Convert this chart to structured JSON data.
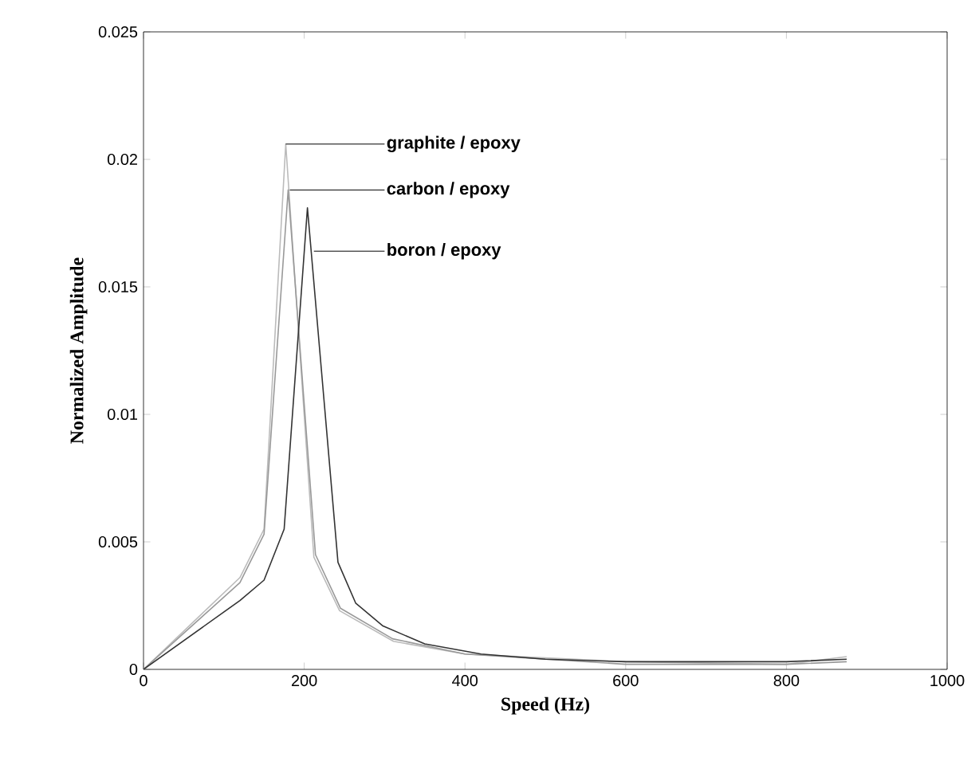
{
  "chart_data": {
    "type": "line",
    "xlabel": "Speed (Hz)",
    "ylabel": "Normalized Amplitude",
    "xlim": [
      0,
      1000
    ],
    "ylim": [
      0,
      0.025
    ],
    "xticks": [
      0,
      200,
      400,
      600,
      800,
      1000
    ],
    "yticks": [
      0,
      0.005,
      0.01,
      0.015,
      0.02,
      0.025
    ],
    "grid": false,
    "marker": "none",
    "line_style": "solid",
    "series": [
      {
        "color": "#bbbbbb",
        "x": [
          0,
          120,
          150,
          177,
          212,
          244,
          311,
          400,
          600,
          800,
          875
        ],
        "values": [
          0,
          0.0036,
          0.0055,
          0.0206,
          0.0044,
          0.0023,
          0.0011,
          0.0006,
          0.0003,
          0.0002,
          0.0005
        ]
      },
      {
        "color": "#999999",
        "x": [
          0,
          120,
          150,
          180,
          214,
          245,
          310,
          400,
          600,
          800,
          875
        ],
        "values": [
          0,
          0.0034,
          0.0053,
          0.0188,
          0.0045,
          0.0024,
          0.0012,
          0.0006,
          0.0002,
          0.0002,
          0.0003
        ]
      },
      {
        "color": "#333333",
        "x": [
          0,
          120,
          150,
          175,
          204,
          242,
          264,
          298,
          350,
          420,
          500,
          600,
          800,
          875
        ],
        "values": [
          0,
          0.0027,
          0.0035,
          0.0055,
          0.0181,
          0.0042,
          0.0026,
          0.0017,
          0.001,
          0.0006,
          0.0004,
          0.0003,
          0.0003,
          0.0004
        ]
      }
    ],
    "annotations": [
      {
        "text": "graphite / epoxy",
        "x": 177,
        "y": 0.0206
      },
      {
        "text": "carbon / epoxy",
        "x": 182,
        "y": 0.0188
      },
      {
        "text": "boron / epoxy",
        "x": 212,
        "y": 0.0164
      }
    ]
  }
}
